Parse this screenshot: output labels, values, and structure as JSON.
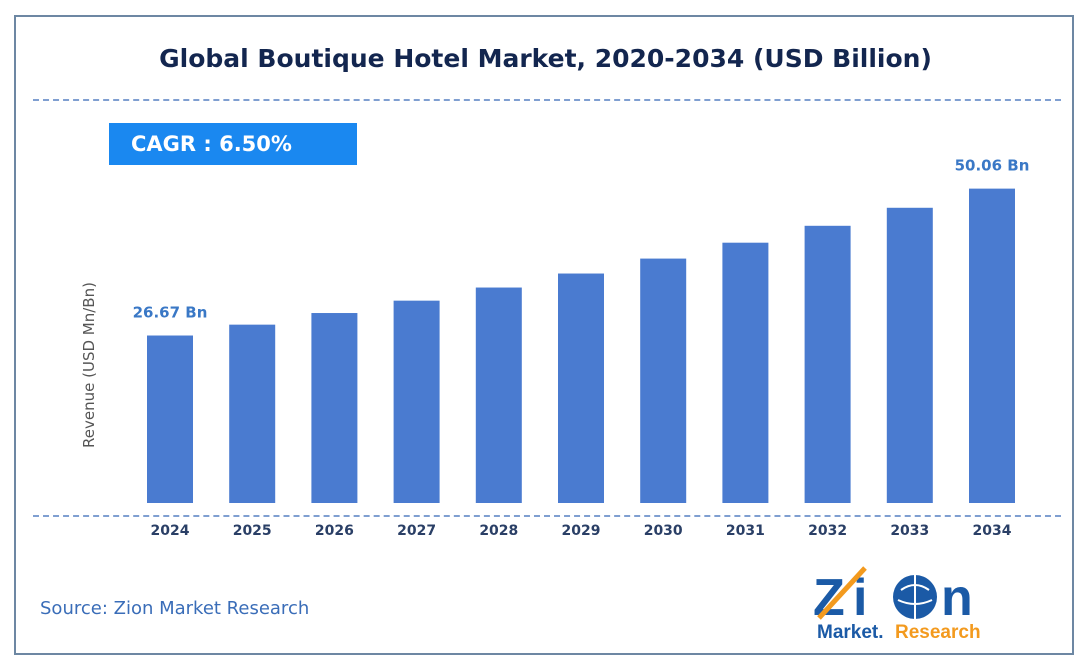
{
  "chart_data": {
    "type": "bar",
    "title": "Global Boutique Hotel Market, 2020-2034 (USD Billion)",
    "ylabel": "Revenue (USD Mn/Bn)",
    "xlabel": "",
    "categories": [
      "2024",
      "2025",
      "2026",
      "2027",
      "2028",
      "2029",
      "2030",
      "2031",
      "2032",
      "2033",
      "2034"
    ],
    "values": [
      26.67,
      28.4,
      30.25,
      32.22,
      34.31,
      36.54,
      38.92,
      41.45,
      44.14,
      47.01,
      50.06
    ],
    "data_labels": {
      "0": "26.67 Bn",
      "10": "50.06 Bn"
    },
    "ylim": [
      0,
      55
    ],
    "grid": false,
    "bar_color": "#4a7bd0"
  },
  "cagr": "CAGR :  6.50%",
  "source": "Source: Zion Market Research",
  "logo": {
    "top": "Zion",
    "bottom_left": "Market.",
    "bottom_right": "Research"
  }
}
